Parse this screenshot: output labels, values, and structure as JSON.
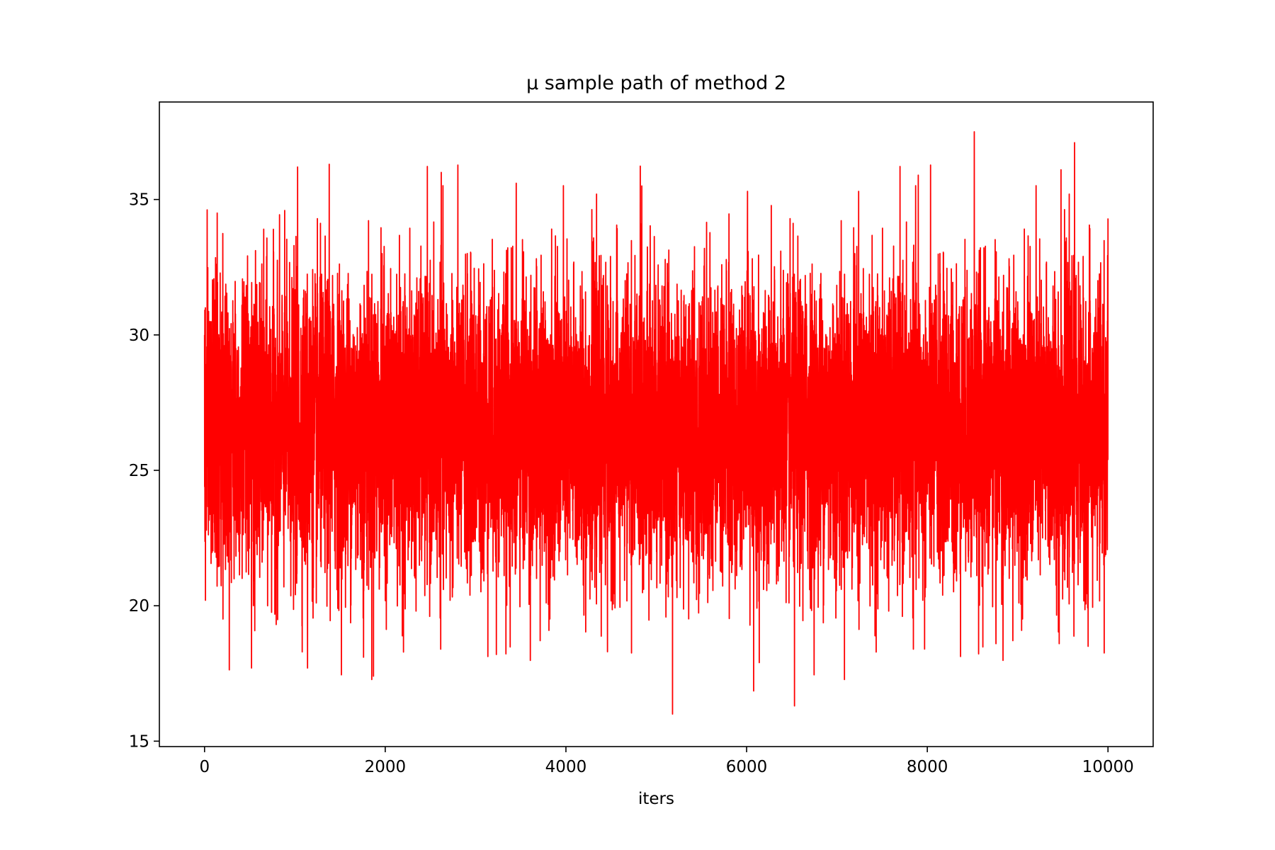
{
  "chart_data": {
    "type": "line",
    "title": "μ sample path of method 2",
    "xlabel": "iters",
    "ylabel": "",
    "xlim": [
      -500,
      10500
    ],
    "ylim": [
      14.8,
      38.6
    ],
    "xticks": [
      "0",
      "2000",
      "4000",
      "6000",
      "8000",
      "10000"
    ],
    "yticks": [
      "15",
      "20",
      "25",
      "30",
      "35"
    ],
    "grid": false,
    "series": [
      {
        "color": "#ff0000",
        "n_points": 10000,
        "center": 26.5,
        "typical_band": [
          21,
          33
        ],
        "extremes": [
          {
            "x": 5180,
            "y": 16.0
          },
          {
            "x": 6530,
            "y": 16.3
          },
          {
            "x": 1870,
            "y": 17.4
          },
          {
            "x": 520,
            "y": 17.7
          },
          {
            "x": 1140,
            "y": 17.7
          },
          {
            "x": 6140,
            "y": 17.9
          },
          {
            "x": 1760,
            "y": 18.1
          },
          {
            "x": 3230,
            "y": 18.2
          },
          {
            "x": 4460,
            "y": 18.3
          },
          {
            "x": 7970,
            "y": 18.4
          },
          {
            "x": 9460,
            "y": 18.6
          },
          {
            "x": 9780,
            "y": 18.5
          },
          {
            "x": 8760,
            "y": 18.6
          },
          {
            "x": 8520,
            "y": 37.5
          },
          {
            "x": 9630,
            "y": 37.1
          },
          {
            "x": 1380,
            "y": 36.3
          },
          {
            "x": 1030,
            "y": 36.2
          },
          {
            "x": 9480,
            "y": 36.1
          },
          {
            "x": 2620,
            "y": 36.0
          },
          {
            "x": 7900,
            "y": 35.9
          },
          {
            "x": 3450,
            "y": 35.6
          },
          {
            "x": 4840,
            "y": 35.5
          },
          {
            "x": 6010,
            "y": 35.3
          },
          {
            "x": 7240,
            "y": 35.3
          },
          {
            "x": 140,
            "y": 34.5
          },
          {
            "x": 10000,
            "y": 34.3
          },
          {
            "x": 0,
            "y": 30.0
          },
          {
            "x": 10,
            "y": 20.2
          }
        ]
      }
    ]
  },
  "colors": {
    "line": "#ff0000",
    "axes": "#000000",
    "background": "#ffffff"
  }
}
